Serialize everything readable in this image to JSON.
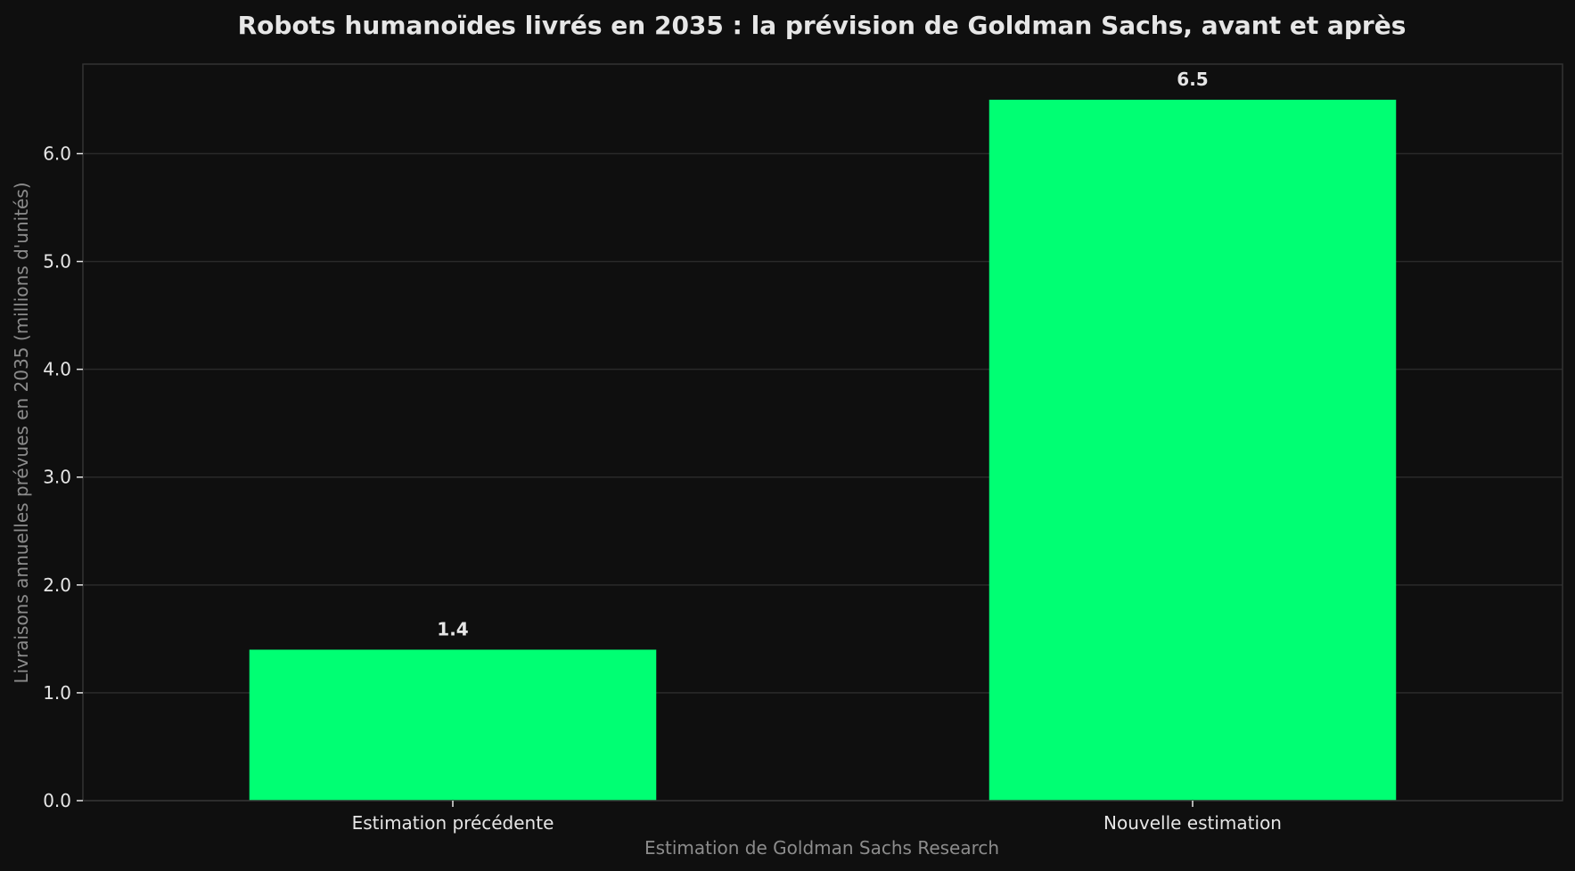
{
  "chart_data": {
    "type": "bar",
    "title": "Robots humanoïdes livrés en 2035 : la prévision de Goldman Sachs, avant et après",
    "xlabel": "Estimation de Goldman Sachs Research",
    "ylabel": "Livraisons annuelles prévues en 2035 (millions d'unités)",
    "categories": [
      "Estimation précédente",
      "Nouvelle estimation"
    ],
    "values": [
      1.4,
      6.5
    ],
    "data_labels": [
      "1.4",
      "6.5"
    ],
    "yticks": [
      "0.0",
      "1.0",
      "2.0",
      "3.0",
      "4.0",
      "5.0",
      "6.0"
    ],
    "ytick_values": [
      0,
      1,
      2,
      3,
      4,
      5,
      6
    ],
    "ylim": [
      0,
      6.83
    ],
    "grid": true,
    "bar_color": "#00ff73",
    "background_color": "#0f0f0f",
    "grid_color": "#2a2a2a",
    "text_color": "#e6e6e6",
    "muted_text_color": "#8c8c8c"
  }
}
